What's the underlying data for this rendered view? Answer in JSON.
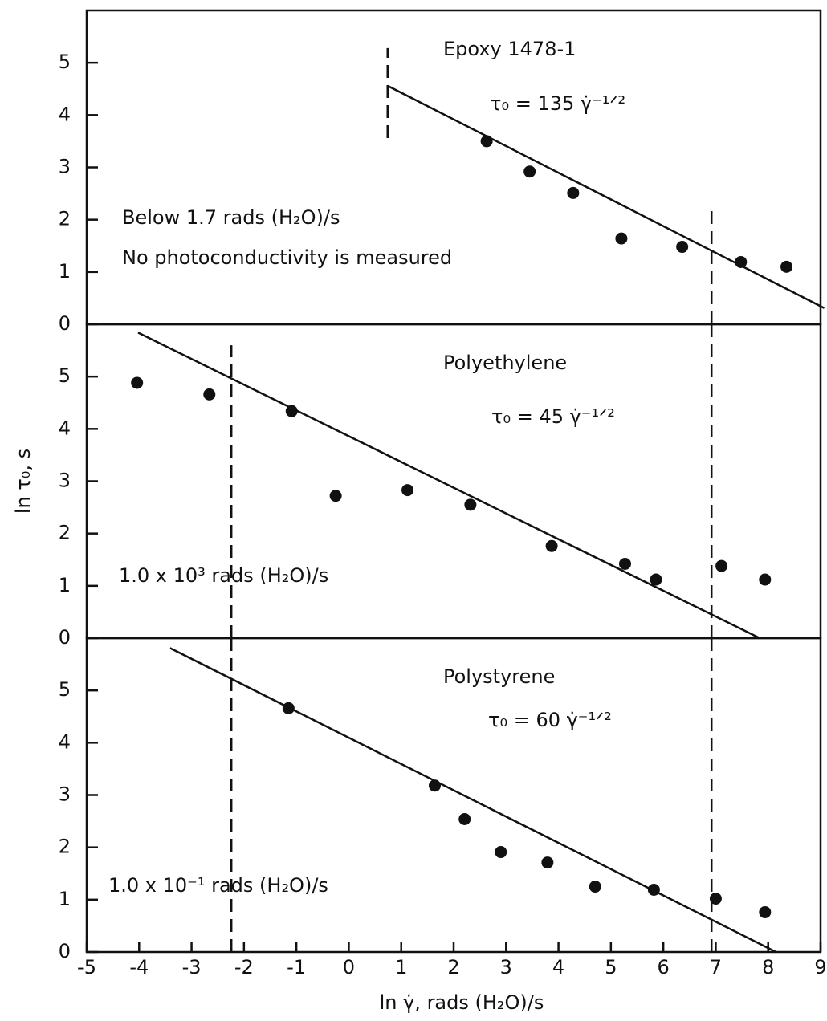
{
  "chart_data": [
    {
      "type": "scatter",
      "title": "Epoxy 1478-1",
      "annotations": [
        "τ₀ = 135 γ̇⁻¹ᐟ²",
        "Below 1.7 rads (H₂O)/s",
        "No photoconductivity is measured"
      ],
      "x": [
        2.63,
        3.45,
        4.28,
        5.2,
        6.36,
        7.48,
        8.35
      ],
      "values": [
        3.5,
        2.92,
        2.51,
        1.64,
        1.48,
        1.19,
        1.1
      ],
      "fit": {
        "x": [
          0.74,
          9.07
        ],
        "y": [
          4.56,
          0.31
        ]
      },
      "reference_lines": [
        {
          "x": 0.74,
          "y": [
            3.56,
            5.28
          ]
        },
        {
          "x": 6.92,
          "y": [
            0,
            2.18
          ]
        }
      ],
      "xlim": [
        -5,
        9
      ],
      "ylim": [
        0,
        6
      ],
      "yticks": [
        0,
        1,
        2,
        3,
        4,
        5
      ],
      "color": "#111111"
    },
    {
      "type": "scatter",
      "title": "Polyethylene",
      "annotations": [
        "τ₀ = 45 γ̇⁻¹ᐟ²",
        "1.0 x 10³ rads (H₂O)/s"
      ],
      "ylabel": "ln τ₀, s",
      "x": [
        -4.04,
        -2.66,
        -1.09,
        -0.25,
        1.12,
        2.32,
        3.87,
        5.27,
        5.86,
        7.11,
        7.94
      ],
      "values": [
        4.88,
        4.66,
        4.34,
        2.72,
        2.83,
        2.55,
        1.76,
        1.42,
        1.12,
        1.38,
        1.12
      ],
      "fit": {
        "x": [
          -4.02,
          7.84
        ],
        "y": [
          5.84,
          0
        ]
      },
      "reference_lines": [
        {
          "x": -2.24,
          "y": [
            0,
            5.6
          ]
        },
        {
          "x": 6.92,
          "y": [
            0,
            6
          ]
        }
      ],
      "xlim": [
        -5,
        9
      ],
      "ylim": [
        0,
        6
      ],
      "yticks": [
        0,
        1,
        2,
        3,
        4,
        5
      ],
      "color": "#111111"
    },
    {
      "type": "scatter",
      "title": "Polystyrene",
      "annotations": [
        "τ₀ = 60 γ̇⁻¹ᐟ²",
        "1.0 x 10⁻¹ rads (H₂O)/s"
      ],
      "xlabel": "ln γ̇, rads (H₂O)/s",
      "x": [
        -1.15,
        1.64,
        2.21,
        2.9,
        3.79,
        4.7,
        5.82,
        7.0,
        7.94
      ],
      "values": [
        4.66,
        3.18,
        2.54,
        1.91,
        1.71,
        1.25,
        1.19,
        1.02,
        0.76
      ],
      "fit": {
        "x": [
          -3.41,
          8.15
        ],
        "y": [
          5.81,
          0
        ]
      },
      "reference_lines": [
        {
          "x": -2.24,
          "y": [
            0,
            6
          ]
        },
        {
          "x": 6.92,
          "y": [
            0,
            6
          ]
        }
      ],
      "xlim": [
        -5,
        9
      ],
      "ylim": [
        0,
        6
      ],
      "yticks": [
        0,
        1,
        2,
        3,
        4,
        5
      ],
      "xticks": [
        -5,
        -4,
        -3,
        -2,
        -1,
        0,
        1,
        2,
        3,
        4,
        5,
        6,
        7,
        8,
        9
      ],
      "color": "#111111"
    }
  ]
}
